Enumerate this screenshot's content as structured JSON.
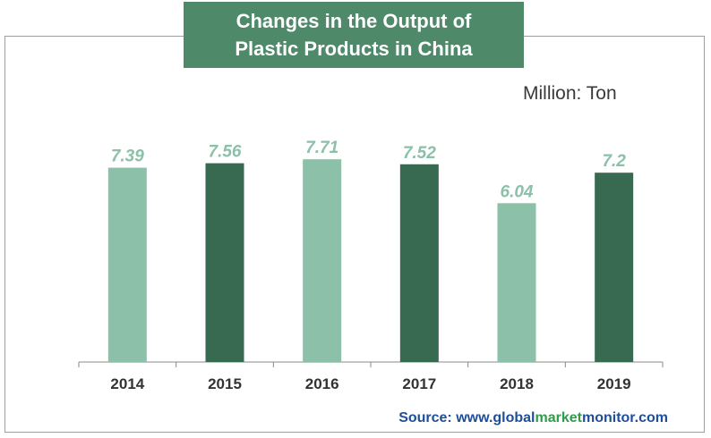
{
  "chart_data": {
    "type": "bar",
    "title": "Changes in the Output of Plastic Products in China",
    "unit_label": "Million: Ton",
    "categories": [
      "2014",
      "2015",
      "2016",
      "2017",
      "2018",
      "2019"
    ],
    "values": [
      7.39,
      7.56,
      7.71,
      7.52,
      6.04,
      7.2
    ],
    "value_labels": [
      "7.39",
      "7.56",
      "7.71",
      "7.52",
      "6.04",
      "7.2"
    ],
    "ylim": [
      0,
      8.5
    ],
    "grid": false,
    "bar_colors": [
      "#8cc0a8",
      "#376a51",
      "#8cc0a8",
      "#376a51",
      "#8cc0a8",
      "#376a51"
    ],
    "label_color": "#8cc0a8"
  },
  "source": {
    "prefix": "Source: www.",
    "global": "global",
    "market": "market",
    "monitor": "monitor",
    "suffix": ".com"
  },
  "colors": {
    "title_bg": "#4e8a6a",
    "source_blue": "#1f4e99",
    "source_green": "#2e9c4a"
  }
}
